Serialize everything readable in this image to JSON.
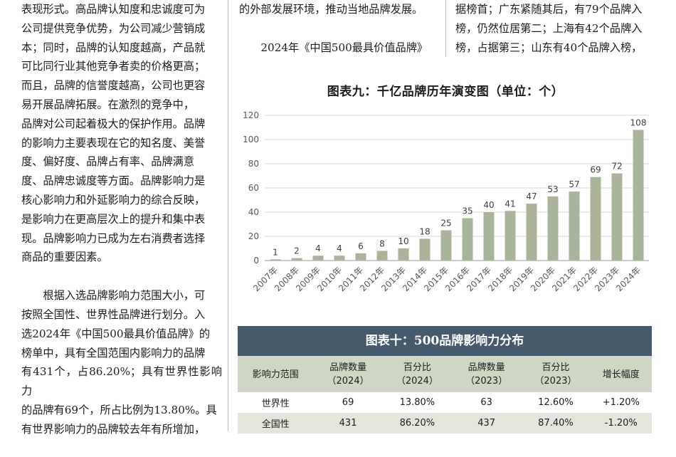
{
  "left_column": {
    "para1_lines": [
      "表现形式。高品牌认知度和忠诚度可为",
      "公司提供竞争优势，为公司减少营销成",
      "本；同时，品牌的认知度越高，产品就",
      "可比同行业其他竞争者卖的价格更高；",
      "而且，品牌的信誉度越高，公司也更容",
      "易开展品牌拓展。在激烈的竞争中，",
      "品牌对公司起着极大的保护作用。品牌",
      "的影响力主要表现在它的知名度、美誉",
      "度、偏好度、品牌占有率、品牌满意",
      "度、品牌忠诚度等方面。品牌影响力是",
      "核心影响力和外延影响力的综合反映，",
      "是影响力在更高层次上的提升和集中表",
      "现。品牌影响力已成为左右消费者选择",
      "商品的重要因素。"
    ],
    "para2_lines": [
      "根据入选品牌影响力范围大小，可",
      "按照全国性、世界性品牌进行划分。入",
      "选2024年《中国500最具价值品牌》的",
      "榜单中，具有全国范围内影响力的品牌",
      "有431个，占86.20%；具有世界性影响力",
      "的品牌有69个，所占比例为13.80%。具",
      "有世界影响力的品牌较去年有所增加，"
    ]
  },
  "middle_top": {
    "line1": "的外部发展环境，推动当地品牌发展。",
    "subtitle": "2024年《中国500最具价值品牌》"
  },
  "right_top": {
    "lines": [
      "据榜首；广东紧随其后，有79个品牌入",
      "榜，仍然位居第二；上海有42个品牌入",
      "榜，占据第三；山东有40个品牌入榜，"
    ]
  },
  "chart_data": {
    "type": "bar",
    "title": "图表九：千亿品牌历年演变图（单位：个）",
    "categories": [
      "2007年",
      "2008年",
      "2009年",
      "2010年",
      "2011年",
      "2012年",
      "2013年",
      "2014年",
      "2015年",
      "2016年",
      "2017年",
      "2018年",
      "2019年",
      "2020年",
      "2021年",
      "2022年",
      "2023年",
      "2024年"
    ],
    "values": [
      1,
      2,
      4,
      4,
      6,
      8,
      10,
      18,
      25,
      35,
      40,
      41,
      47,
      53,
      57,
      69,
      72,
      108
    ],
    "ylim": [
      0,
      120
    ],
    "yticks": [
      0,
      20,
      40,
      60,
      80,
      100,
      120
    ],
    "grid": true,
    "bar_color": "#a8b59a",
    "xlabel": "",
    "ylabel": ""
  },
  "table": {
    "title": "图表十：500品牌影响力分布",
    "headers": [
      [
        "影响力范围"
      ],
      [
        "品牌数量",
        "（2024）"
      ],
      [
        "百分比",
        "（2024）"
      ],
      [
        "品牌数量",
        "（2023）"
      ],
      [
        "百分比",
        "（2023）"
      ],
      [
        "增长幅度"
      ]
    ],
    "rows": [
      [
        "世界性",
        "69",
        "13.80%",
        "63",
        "12.60%",
        "+1.20%"
      ],
      [
        "全国性",
        "431",
        "86.20%",
        "437",
        "87.40%",
        "-1.20%"
      ]
    ],
    "header_bg": "#cfd6c4",
    "title_bg": "#465a6e"
  }
}
